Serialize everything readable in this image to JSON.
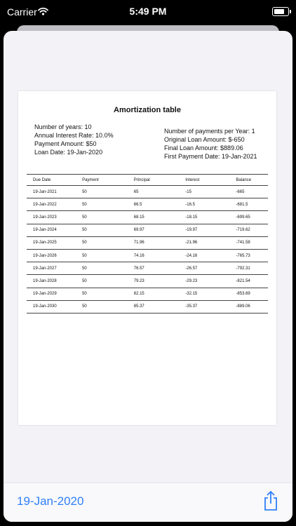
{
  "status_bar": {
    "carrier": "Carrier",
    "time": "5:49 PM"
  },
  "report": {
    "title": "Amortization table",
    "info_left": [
      "Number of years: 10",
      "Annual Interest Rate: 10.0%",
      "Payment Amount: $50",
      "Loan Date: 19-Jan-2020"
    ],
    "info_right": [
      "Number of payments per Year: 1",
      "Original Loan Amount: $-650",
      "Final Loan Amount: $889.06",
      "First Payment Date: 19-Jan-2021"
    ],
    "table": {
      "headers": [
        "Due Date",
        "Payment",
        "Principal",
        "Interest",
        "Balance"
      ],
      "rows": [
        [
          "19-Jan-2021",
          "50",
          "65",
          "-15",
          "-665"
        ],
        [
          "19-Jan-2022",
          "50",
          "66.5",
          "-16.5",
          "-681.5"
        ],
        [
          "19-Jan-2023",
          "50",
          "68.15",
          "-18.15",
          "-699.65"
        ],
        [
          "19-Jan-2024",
          "50",
          "69.97",
          "-19.97",
          "-719.62"
        ],
        [
          "19-Jan-2025",
          "50",
          "71.96",
          "-21.96",
          "-741.58"
        ],
        [
          "19-Jan-2026",
          "50",
          "74.16",
          "-24.16",
          "-765.73"
        ],
        [
          "19-Jan-2027",
          "50",
          "76.57",
          "-26.57",
          "-792.31"
        ],
        [
          "19-Jan-2028",
          "50",
          "79.23",
          "-29.23",
          "-821.54"
        ],
        [
          "19-Jan-2029",
          "50",
          "82.15",
          "-32.15",
          "-853.69"
        ],
        [
          "19-Jan-2030",
          "50",
          "85.37",
          "-35.37",
          "-889.06"
        ]
      ]
    }
  },
  "bottom_bar": {
    "date": "19-Jan-2020",
    "share_icon": "share-icon"
  },
  "colors": {
    "accent": "#2f7ff7",
    "sheet_background": "#f2f2f7"
  }
}
